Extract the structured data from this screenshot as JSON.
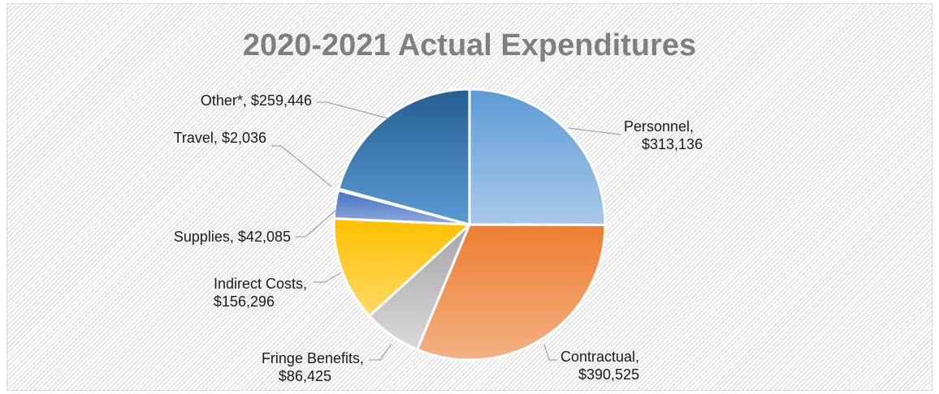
{
  "chart_data": {
    "type": "pie",
    "title": "2020-2021 Actual Expenditures",
    "slices": [
      {
        "name": "Personnel",
        "value": 313136,
        "line1": "Personnel,",
        "line2": "$313,136",
        "color_start": "#5b9bd5",
        "color_end": "#a9c8ea"
      },
      {
        "name": "Contractual",
        "value": 390525,
        "line1": "Contractual,",
        "line2": "$390,525",
        "color_start": "#ed7d31",
        "color_end": "#f4b183"
      },
      {
        "name": "Fringe Benefits",
        "value": 86425,
        "line1": "Fringe Benefits,",
        "line2": "$86,425",
        "color_start": "#a5a5a5",
        "color_end": "#d9d9d9"
      },
      {
        "name": "Indirect Costs",
        "value": 156296,
        "line1": "Indirect Costs,",
        "line2": "$156,296",
        "color_start": "#ffc000",
        "color_end": "#ffd966"
      },
      {
        "name": "Supplies",
        "value": 42085,
        "line1": "Supplies, $42,085",
        "line2": "",
        "color_start": "#4472c4",
        "color_end": "#8faadc"
      },
      {
        "name": "Travel",
        "value": 2036,
        "line1": "Travel, $2,036",
        "line2": "",
        "color_start": "#70ad47",
        "color_end": "#a9d18e"
      },
      {
        "name": "Other*",
        "value": 259446,
        "line1": "Other*, $259,446",
        "line2": "",
        "color_start": "#255e91",
        "color_end": "#5b9bd5"
      }
    ],
    "start_angle_deg": 0,
    "direction": "clockwise",
    "legend": "none",
    "labels": "outside-with-leader-lines"
  }
}
